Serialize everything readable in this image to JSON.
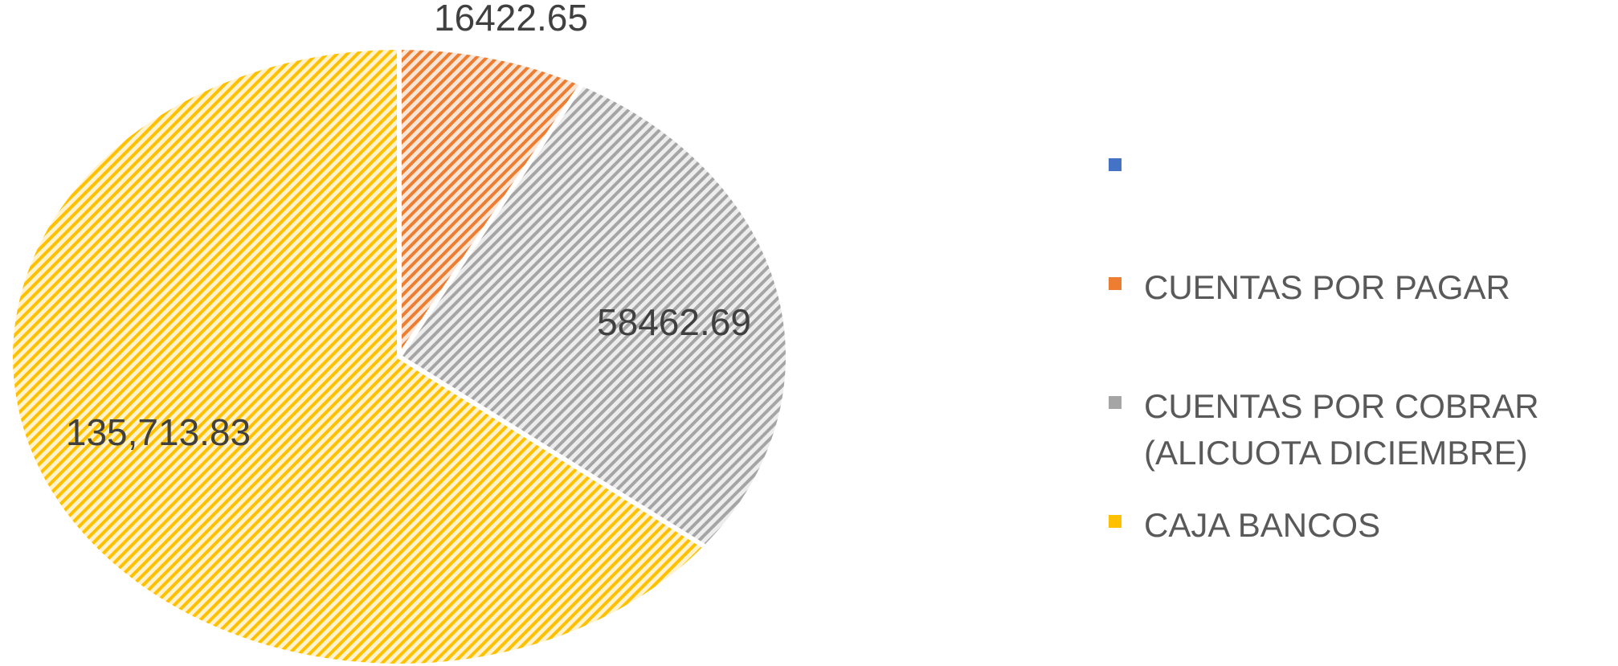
{
  "chart_data": {
    "type": "pie",
    "categories": [
      null,
      "CUENTAS POR PAGAR",
      "CUENTAS POR COBRAR (ALICUOTA DICIEMBRE)",
      "CAJA BANCOS"
    ],
    "values": [
      0,
      16422.65,
      58462.69,
      135713.83
    ],
    "value_labels": [
      null,
      "16422.65",
      "58462.69",
      "135,713.83"
    ],
    "colors": [
      "#4472c4",
      "#ed7d31",
      "#a5a5a5",
      "#ffc000"
    ],
    "legend": "right"
  }
}
